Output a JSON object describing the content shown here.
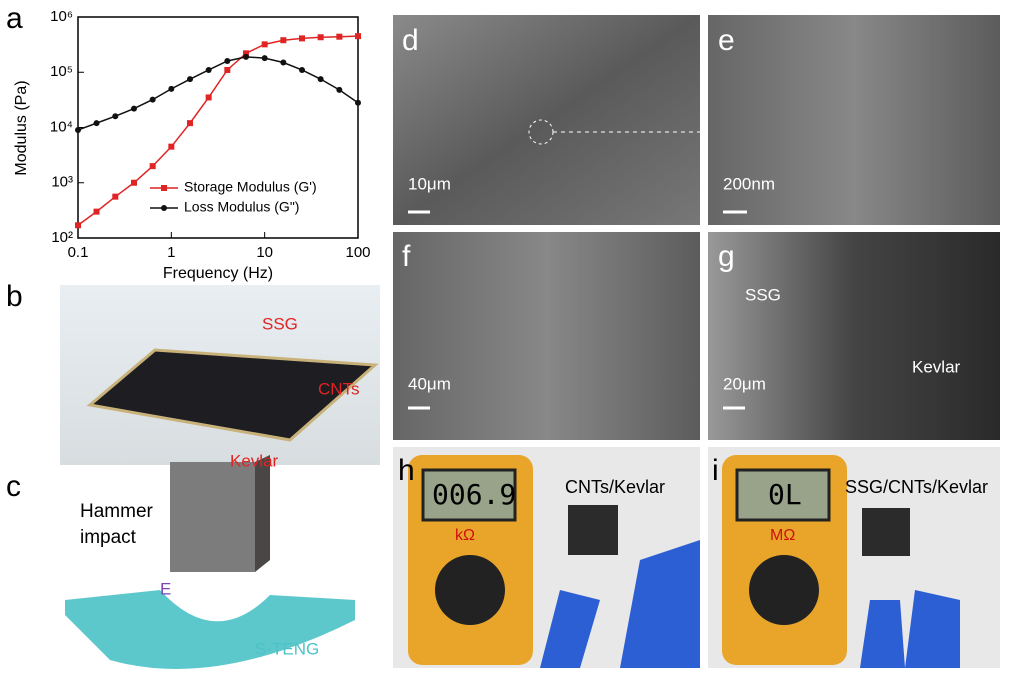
{
  "chart_data": {
    "type": "line",
    "xlabel": "Frequency (Hz)",
    "ylabel": "Modulus (Pa)",
    "log_x": true,
    "log_y": true,
    "x": [
      0.1,
      0.158,
      0.251,
      0.398,
      0.631,
      1,
      1.585,
      2.512,
      3.981,
      6.31,
      10,
      15.85,
      25.12,
      39.81,
      63.1,
      100
    ],
    "series": [
      {
        "name": "Storage Modulus (G')",
        "color": "#e02424",
        "marker": "square",
        "values": [
          170,
          300,
          560,
          1000,
          2000,
          4500,
          12000,
          35000,
          110000,
          220000,
          320000,
          380000,
          410000,
          430000,
          440000,
          450000
        ]
      },
      {
        "name": "Loss Modulus (G\")",
        "color": "#111111",
        "marker": "circle",
        "values": [
          9000,
          12000,
          16000,
          22000,
          32000,
          50000,
          75000,
          110000,
          160000,
          190000,
          180000,
          150000,
          110000,
          75000,
          48000,
          28000
        ]
      }
    ],
    "xlim": [
      0.1,
      100
    ],
    "xticks": [
      0.1,
      1,
      10,
      100
    ],
    "ylim": [
      100,
      1000000
    ],
    "yticks": [
      {
        "value": 100,
        "label": "10²"
      },
      {
        "value": 1000,
        "label": "10³"
      },
      {
        "value": 10000,
        "label": "10⁴"
      },
      {
        "value": 100000,
        "label": "10⁵"
      },
      {
        "value": 1000000,
        "label": "10⁶"
      }
    ],
    "legend": "lower right"
  },
  "panels": [
    {
      "label": "a"
    },
    {
      "label": "b",
      "texts": [
        "SSG",
        "CNTs",
        "Kevlar"
      ]
    },
    {
      "label": "c",
      "texts": [
        "Hammer",
        "impact",
        "E",
        "S-TENG"
      ]
    },
    {
      "label": "d",
      "texts": [
        "10μm"
      ]
    },
    {
      "label": "e",
      "texts": [
        "200nm"
      ]
    },
    {
      "label": "f",
      "texts": [
        "40μm"
      ]
    },
    {
      "label": "g",
      "texts": [
        "SSG",
        "Kevlar",
        "20μm"
      ]
    },
    {
      "label": "h",
      "texts": [
        "CNTs/Kevlar",
        "006.9",
        "kΩ"
      ]
    },
    {
      "label": "i",
      "texts": [
        "SSG/CNTs/Kevlar",
        "0L",
        "MΩ"
      ]
    }
  ]
}
